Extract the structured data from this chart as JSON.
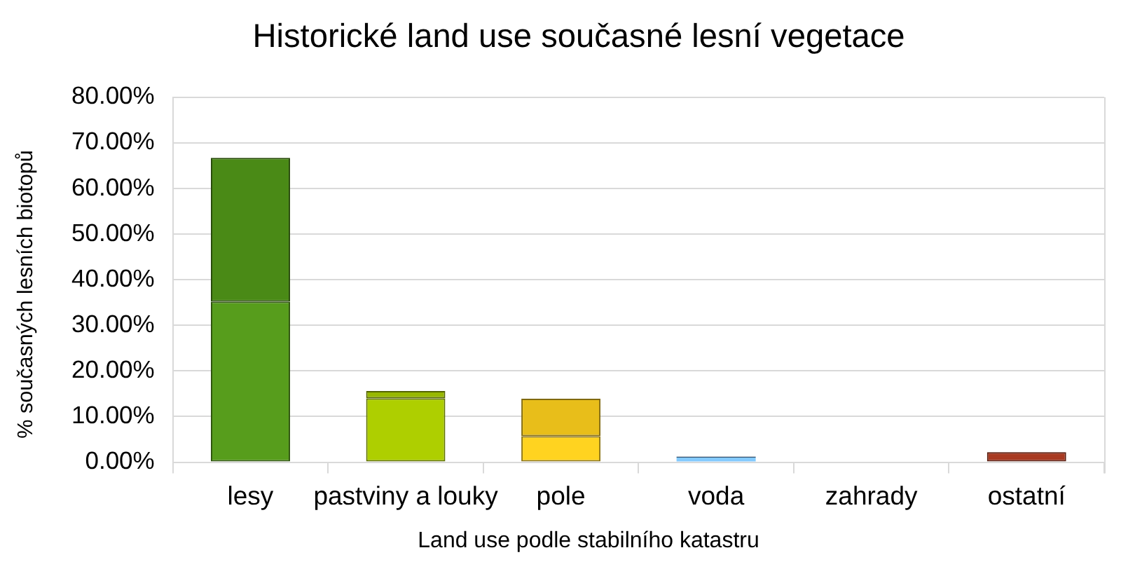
{
  "chart_data": {
    "type": "bar",
    "title": "Historické land use současné lesní vegetace",
    "xlabel": "Land use podle stabilního katastru",
    "ylabel": "% současných lesních biotopů",
    "categories": [
      "lesy",
      "pastviny a louky",
      "pole",
      "voda",
      "zahrady",
      "ostatní"
    ],
    "series": [
      {
        "colors": [
          "#579d1c",
          "#aecf00",
          "#ffd320",
          "#83caff",
          "#7e0021",
          "#c5462b"
        ],
        "values": [
          35.2,
          14.0,
          5.7,
          1.0,
          0,
          0
        ]
      },
      {
        "colors": [
          "#4a8a16",
          "#98b800",
          "#e8be1a",
          "#324f6a",
          "#6a001b",
          "#a83a22"
        ],
        "values": [
          31.5,
          1.6,
          8.2,
          0.2,
          0,
          2.2
        ]
      }
    ],
    "stacked": true,
    "ylim": [
      0,
      80
    ],
    "yticks": [
      {
        "value": 0,
        "label": "0.00%"
      },
      {
        "value": 10,
        "label": "10.00%"
      },
      {
        "value": 20,
        "label": "20.00%"
      },
      {
        "value": 30,
        "label": "30.00%"
      },
      {
        "value": 40,
        "label": "40.00%"
      },
      {
        "value": 50,
        "label": "50.00%"
      },
      {
        "value": 60,
        "label": "60.00%"
      },
      {
        "value": 70,
        "label": "70.00%"
      },
      {
        "value": 80,
        "label": "80.00%"
      }
    ],
    "grid": "y",
    "legend": false
  }
}
